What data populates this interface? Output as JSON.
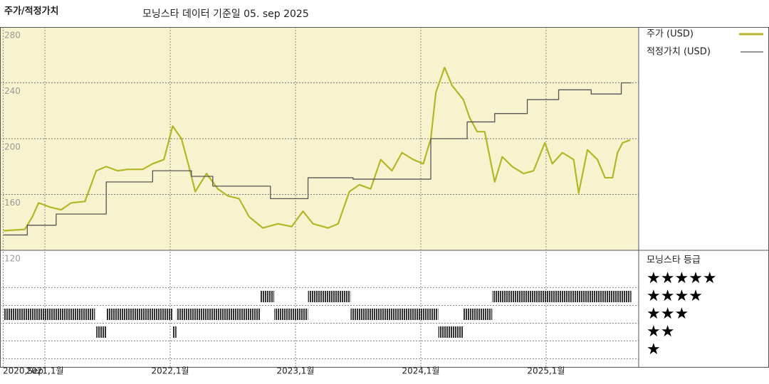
{
  "chart_data": {
    "type": "line",
    "title": "주가/적정가치",
    "subtitle": "모닝스타 데이터 기준일 05. sep 2025",
    "xlim": [
      2020.642,
      2025.739
    ],
    "xticks": [
      {
        "value": 2020.667,
        "label": "2020,Sep"
      },
      {
        "value": 2021,
        "label": "2021,1월"
      },
      {
        "value": 2022,
        "label": "2022,1월"
      },
      {
        "value": 2023,
        "label": "2023,1월"
      },
      {
        "value": 2024,
        "label": "2024,1월"
      },
      {
        "value": 2025,
        "label": "2025,1월"
      }
    ],
    "ylim": [
      120,
      280
    ],
    "yticks": [
      120,
      160,
      200,
      240,
      280
    ],
    "grid": true,
    "series": [
      {
        "name": "주가 (USD)",
        "color": "#b3b626",
        "step": false,
        "x": [
          2020.67,
          2020.84,
          2020.9,
          2020.95,
          2021.04,
          2021.13,
          2021.21,
          2021.32,
          2021.41,
          2021.49,
          2021.58,
          2021.66,
          2021.78,
          2021.86,
          2021.95,
          2022.02,
          2022.09,
          2022.15,
          2022.2,
          2022.29,
          2022.38,
          2022.46,
          2022.55,
          2022.63,
          2022.74,
          2022.86,
          2022.97,
          2023.06,
          2023.14,
          2023.26,
          2023.34,
          2023.43,
          2023.51,
          2023.6,
          2023.68,
          2023.77,
          2023.85,
          2023.94,
          2024.02,
          2024.08,
          2024.12,
          2024.19,
          2024.25,
          2024.34,
          2024.39,
          2024.45,
          2024.51,
          2024.59,
          2024.65,
          2024.73,
          2024.82,
          2024.9,
          2024.99,
          2025.05,
          2025.13,
          2025.22,
          2025.26,
          2025.33,
          2025.41,
          2025.47,
          2025.53,
          2025.57,
          2025.61,
          2025.67
        ],
        "values": [
          134,
          135,
          144,
          154,
          151,
          149,
          154,
          155,
          177,
          180,
          177,
          178,
          178,
          182,
          185,
          209,
          200,
          180,
          162,
          175,
          164,
          159,
          157,
          144,
          136,
          139,
          137,
          148,
          139,
          136,
          139,
          162,
          167,
          164,
          185,
          177,
          190,
          185,
          182,
          200,
          233,
          251,
          238,
          228,
          215,
          205,
          205,
          169,
          187,
          180,
          175,
          177,
          197,
          182,
          190,
          185,
          161,
          192,
          185,
          172,
          172,
          190,
          197,
          199
        ]
      },
      {
        "name": "적정가치 (USD)",
        "color": "#555555",
        "step": true,
        "x": [
          2020.67,
          2020.86,
          2021.09,
          2021.49,
          2021.86,
          2022.17,
          2022.34,
          2022.8,
          2023.1,
          2023.46,
          2024.08,
          2024.37,
          2024.59,
          2024.85,
          2025.1,
          2025.36,
          2025.6,
          2025.68
        ],
        "values": [
          131,
          138,
          146,
          169,
          177,
          173,
          166,
          157,
          172,
          171,
          200,
          212,
          218,
          228,
          235,
          232,
          240,
          240
        ]
      }
    ],
    "rating": {
      "title": "모닝스타 등급",
      "levels": [
        "★★★★★",
        "★★★★",
        "★★★",
        "★★",
        "★"
      ],
      "color": "#333333",
      "start": [
        2020.67,
        2021.41,
        2021.49,
        2022.02,
        2022.05,
        2022.72,
        2022.83,
        2023.1,
        2023.44,
        2024.14,
        2024.34,
        2024.57
      ],
      "end": [
        2021.4,
        2021.49,
        2022.02,
        2022.05,
        2022.72,
        2022.83,
        2023.1,
        2023.44,
        2024.14,
        2024.34,
        2024.57,
        2025.68
      ],
      "values": [
        3,
        2,
        3,
        2,
        3,
        4,
        3,
        4,
        3,
        2,
        3,
        4
      ]
    }
  }
}
